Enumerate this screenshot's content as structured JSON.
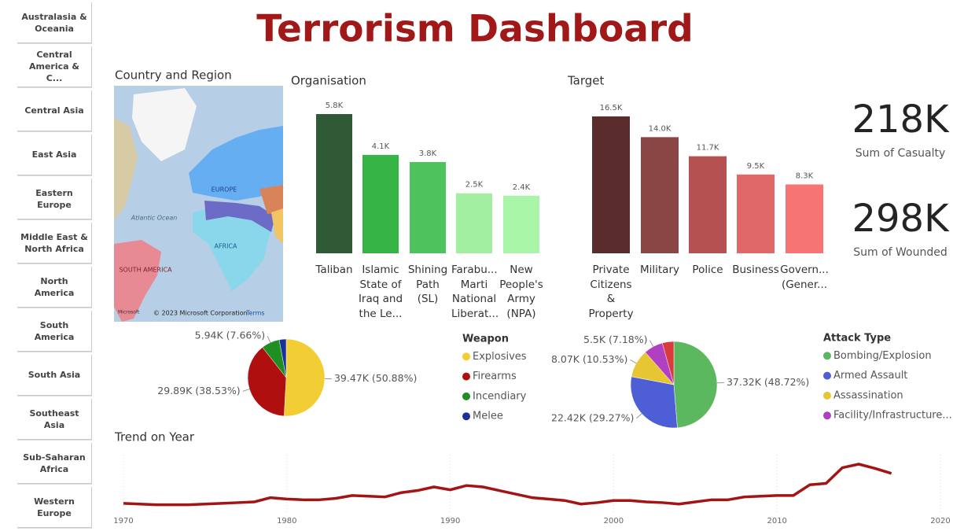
{
  "title": "Terrorism Dashboard",
  "slicer": {
    "items": [
      "Australasia & Oceania",
      "Central America & C...",
      "Central Asia",
      "East Asia",
      "Eastern Europe",
      "Middle East & North Africa",
      "North America",
      "South America",
      "South Asia",
      "Southeast Asia",
      "Sub-Saharan Africa",
      "Western Europe"
    ]
  },
  "map": {
    "title": "Country and Region",
    "labels": [
      "EUROPE",
      "AFRICA",
      "SOUTH AMERICA",
      "Atlantic Ocean"
    ],
    "logo": "Microsoft",
    "attribution": "© 2023 Microsoft Corporation",
    "terms": "Terms"
  },
  "cards": [
    {
      "value": "218K",
      "label": "Sum of Casualty"
    },
    {
      "value": "298K",
      "label": "Sum of Wounded"
    }
  ],
  "chart_data": [
    {
      "type": "bar",
      "title": "Organisation",
      "categories": [
        "Taliban",
        "Islamic State of Iraq and the Le...",
        "Shining Path (SL)",
        "Farabu... Marti National Liberat...",
        "New People's Army (NPA)"
      ],
      "values": [
        5800,
        4100,
        3800,
        2500,
        2400
      ],
      "value_labels": [
        "5.8K",
        "4.1K",
        "3.8K",
        "2.5K",
        "2.4K"
      ],
      "colors": [
        "#2f5a35",
        "#36b446",
        "#4ec25c",
        "#a2efa2",
        "#a8f5a8"
      ]
    },
    {
      "type": "bar",
      "title": "Target",
      "categories": [
        "Private Citizens & Property",
        "Military",
        "Police",
        "Business",
        "Govern... (Gener..."
      ],
      "values": [
        16500,
        14000,
        11700,
        9500,
        8300
      ],
      "value_labels": [
        "16.5K",
        "14.0K",
        "11.7K",
        "9.5K",
        "8.3K"
      ],
      "colors": [
        "#5b2c2c",
        "#8a4545",
        "#b65151",
        "#e06868",
        "#f77474"
      ]
    },
    {
      "type": "pie",
      "legend_title": "Weapon",
      "categories": [
        "Explosives",
        "Firearms",
        "Incendiary",
        "Melee"
      ],
      "values": [
        39470,
        29890,
        5940,
        2270
      ],
      "value_labels": [
        "39.47K (50.88%)",
        "29.89K (38.53%)",
        "5.94K (7.66%)",
        null
      ],
      "colors": [
        "#f2cd34",
        "#b00f0f",
        "#1f8f22",
        "#1b2f99"
      ]
    },
    {
      "type": "pie",
      "legend_title": "Attack Type",
      "categories": [
        "Bombing/Explosion",
        "Armed Assault",
        "Assassination",
        "Facility/Infrastructure...",
        null
      ],
      "values": [
        37320,
        22420,
        8070,
        5500,
        3300
      ],
      "value_labels": [
        "37.32K (48.72%)",
        "22.42K (29.27%)",
        "8.07K (10.53%)",
        "5.5K (7.18%)",
        null
      ],
      "colors": [
        "#5cb85f",
        "#4e5fd6",
        "#e7c633",
        "#b03fc2",
        "#d93a3a"
      ]
    },
    {
      "type": "line",
      "title": "Trend on Year",
      "color": "#a31515",
      "x": [
        1970,
        1971,
        1972,
        1973,
        1974,
        1975,
        1976,
        1977,
        1978,
        1979,
        1980,
        1981,
        1982,
        1983,
        1984,
        1985,
        1986,
        1987,
        1988,
        1989,
        1990,
        1991,
        1992,
        1993,
        1994,
        1995,
        1996,
        1997,
        1998,
        1999,
        2000,
        2001,
        2002,
        2003,
        2004,
        2005,
        2006,
        2007,
        2008,
        2009,
        2010,
        2011,
        2012,
        2013,
        2014,
        2015,
        2016,
        2017
      ],
      "values": [
        2250,
        2000,
        1750,
        1750,
        1750,
        2000,
        2250,
        2500,
        2750,
        4250,
        3750,
        3500,
        3500,
        4000,
        5000,
        4750,
        4500,
        6000,
        6750,
        8000,
        7000,
        8500,
        8000,
        6750,
        5500,
        4250,
        3750,
        3250,
        2000,
        2500,
        3250,
        3250,
        2750,
        2500,
        2000,
        2750,
        3500,
        3500,
        4500,
        4750,
        5000,
        5000,
        8750,
        9250,
        14750,
        16000,
        14500,
        12750
      ],
      "xlim": [
        1970,
        2020
      ],
      "xticks": [
        1970,
        1980,
        1990,
        2000,
        2010,
        2020
      ],
      "grid": true
    }
  ]
}
